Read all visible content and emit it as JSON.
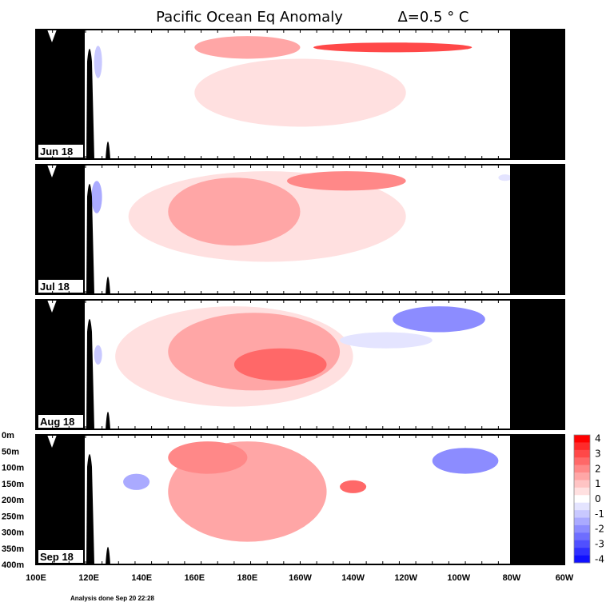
{
  "chart_data": {
    "type": "heatmap",
    "title": "Pacific Ocean Eq Anomaly",
    "contour_interval": "Δ=0.5 ° C",
    "x_ticks": [
      "100E",
      "120E",
      "140E",
      "160E",
      "180E",
      "160W",
      "140W",
      "120W",
      "100W",
      "80W",
      "60W"
    ],
    "y_ticks": [
      "0m",
      "50m",
      "100m",
      "150m",
      "200m",
      "250m",
      "300m",
      "350m",
      "400m"
    ],
    "xlim": [
      "100E",
      "60W"
    ],
    "ylim_m": [
      0,
      400
    ],
    "panels": [
      {
        "month": "Jun 18",
        "warm_anomalies_C": [
          {
            "lon": "155W-95W",
            "depth_m": "40-70",
            "value": 3.0
          },
          {
            "lon": "160E-160W",
            "depth_m": "20-90",
            "value": 1.5
          },
          {
            "lon": "160E-120W",
            "depth_m": "90-300",
            "value": 0.5
          }
        ],
        "cold_anomalies_C": [
          {
            "lon": "122E-125E",
            "depth_m": "50-150",
            "value": -1.0
          }
        ]
      },
      {
        "month": "Jul 18",
        "warm_anomalies_C": [
          {
            "lon": "165W-120W",
            "depth_m": "20-80",
            "value": 2.0
          },
          {
            "lon": "150E-160W",
            "depth_m": "40-250",
            "value": 1.5
          },
          {
            "lon": "135E-120W",
            "depth_m": "20-300",
            "value": 0.5
          }
        ],
        "cold_anomalies_C": [
          {
            "lon": "121E-125E",
            "depth_m": "50-150",
            "value": -1.5
          },
          {
            "lon": "85W-80W",
            "depth_m": "30-50",
            "value": -0.5
          }
        ]
      },
      {
        "month": "Aug 18",
        "warm_anomalies_C": [
          {
            "lon": "175E-150W",
            "depth_m": "150-250",
            "value": 2.5
          },
          {
            "lon": "150E-145W",
            "depth_m": "40-280",
            "value": 1.5
          },
          {
            "lon": "130E-140W",
            "depth_m": "20-330",
            "value": 0.5
          }
        ],
        "cold_anomalies_C": [
          {
            "lon": "125W-90W",
            "depth_m": "20-100",
            "value": -2.0
          },
          {
            "lon": "145W-110W",
            "depth_m": "100-150",
            "value": -0.5
          },
          {
            "lon": "122E-125E",
            "depth_m": "140-200",
            "value": -1.0
          }
        ]
      },
      {
        "month": "Sep 18",
        "warm_anomalies_C": [
          {
            "lon": "150E-180",
            "depth_m": "20-120",
            "value": 2.0
          },
          {
            "lon": "145W-135W",
            "depth_m": "140-180",
            "value": 2.5
          },
          {
            "lon": "150E-150W",
            "depth_m": "20-330",
            "value": 1.5
          }
        ],
        "cold_anomalies_C": [
          {
            "lon": "110W-85W",
            "depth_m": "40-120",
            "value": -2.0
          },
          {
            "lon": "133E-143E",
            "depth_m": "120-170",
            "value": -1.5
          }
        ]
      }
    ],
    "colorbar": {
      "labels": [
        "4",
        "3",
        "2",
        "1",
        "0",
        "-1",
        "-2",
        "-3",
        "-4"
      ],
      "levels": [
        4,
        3.5,
        3,
        2.5,
        2,
        1.5,
        1,
        0.5,
        0,
        -0.5,
        -1,
        -1.5,
        -2,
        -2.5,
        -3,
        -3.5,
        -4
      ],
      "colors": [
        "#ff0000",
        "#ff2a2a",
        "#ff4848",
        "#ff6868",
        "#ff8888",
        "#ffa6a6",
        "#ffc4c4",
        "#ffe0e0",
        "#ffffff",
        "#e4e4ff",
        "#c8c8ff",
        "#aaaaff",
        "#8c8cff",
        "#6e6eff",
        "#5050ff",
        "#3030ff",
        "#1010ff"
      ]
    },
    "footer": "Analysis done Sep 20 22:28"
  }
}
